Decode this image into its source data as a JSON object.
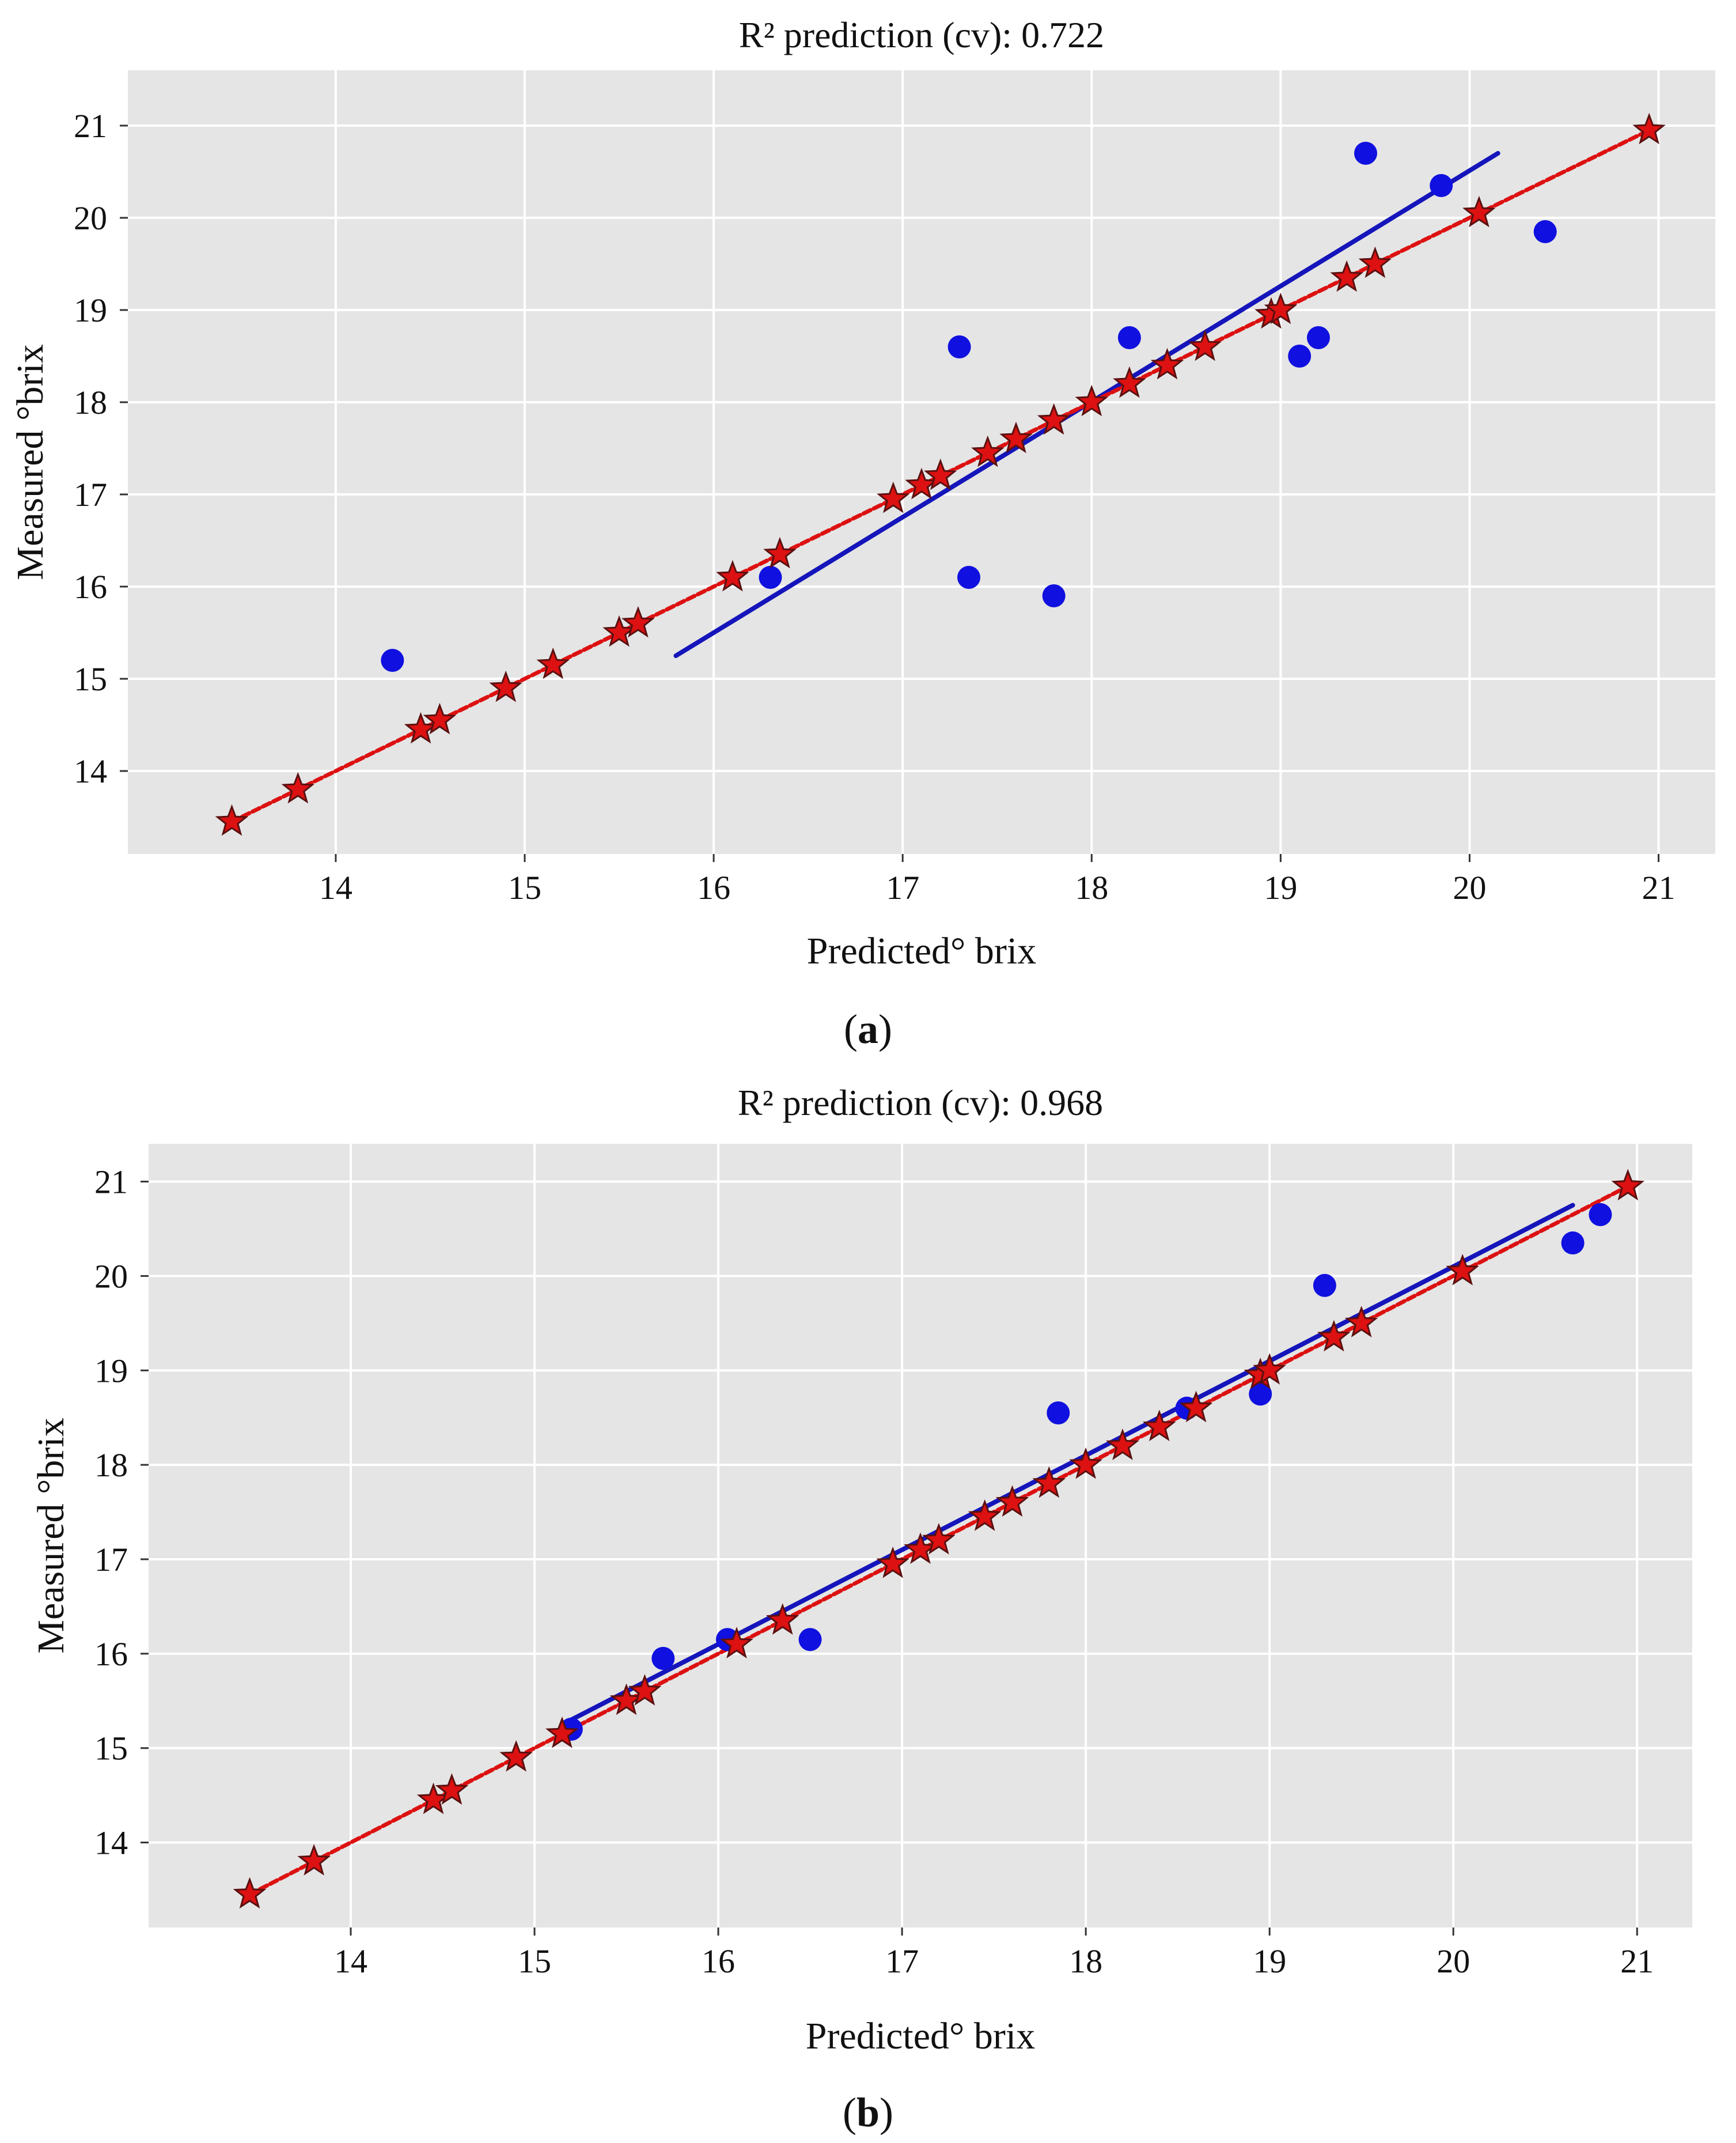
{
  "chart_data": [
    {
      "type": "scatter",
      "panel_label": "a",
      "title": "R² prediction (cv): 0.722",
      "xlabel": "Predicted°  brix",
      "ylabel": "Measured  °brix",
      "xlim": [
        12.9,
        21.3
      ],
      "ylim": [
        13.1,
        21.6
      ],
      "xticks": [
        14,
        15,
        16,
        17,
        18,
        19,
        20,
        21
      ],
      "yticks": [
        14,
        15,
        16,
        17,
        18,
        19,
        20,
        21
      ],
      "grid": true,
      "background": "#e5e5e5",
      "series": [
        {
          "name": "measured points",
          "marker": "circle",
          "color": "#1010e0",
          "x": [
            14.3,
            16.3,
            17.3,
            17.35,
            17.8,
            18.2,
            19.1,
            19.2,
            19.45,
            19.85,
            20.4
          ],
          "y": [
            15.2,
            16.1,
            18.6,
            16.1,
            15.9,
            18.7,
            18.5,
            18.7,
            20.7,
            20.35,
            19.85
          ]
        },
        {
          "name": "fitted line",
          "marker": "line",
          "color": "#1515bb",
          "x": [
            15.8,
            20.15
          ],
          "y": [
            15.25,
            20.7
          ]
        },
        {
          "name": "reference stars",
          "marker": "star",
          "color": "#dd1111",
          "x": [
            13.45,
            13.8,
            14.45,
            14.55,
            14.9,
            15.15,
            15.5,
            15.6,
            16.1,
            16.35,
            16.95,
            17.1,
            17.2,
            17.45,
            17.6,
            17.8,
            18.0,
            18.2,
            18.4,
            18.6,
            18.95,
            19.0,
            19.35,
            19.5,
            20.05,
            20.95
          ],
          "y": [
            13.45,
            13.8,
            14.45,
            14.55,
            14.9,
            15.15,
            15.5,
            15.6,
            16.1,
            16.35,
            16.95,
            17.1,
            17.2,
            17.45,
            17.6,
            17.8,
            18.0,
            18.2,
            18.4,
            18.6,
            18.95,
            19.0,
            19.35,
            19.5,
            20.05,
            20.95
          ]
        },
        {
          "name": "reference line",
          "marker": "line",
          "color": "#dd1111",
          "x": [
            13.45,
            20.95
          ],
          "y": [
            13.45,
            20.95
          ]
        }
      ]
    },
    {
      "type": "scatter",
      "panel_label": "b",
      "title": "R² prediction (cv): 0.968",
      "xlabel": "Predicted°  brix",
      "ylabel": "Measured  °brix",
      "xlim": [
        12.9,
        21.3
      ],
      "ylim": [
        13.1,
        21.4
      ],
      "xticks": [
        14,
        15,
        16,
        17,
        18,
        19,
        20,
        21
      ],
      "yticks": [
        14,
        15,
        16,
        17,
        18,
        19,
        20,
        21
      ],
      "grid": true,
      "background": "#e5e5e5",
      "series": [
        {
          "name": "measured points",
          "marker": "circle",
          "color": "#1010e0",
          "x": [
            15.2,
            15.7,
            16.05,
            16.5,
            17.85,
            18.55,
            18.95,
            19.3,
            20.65,
            20.8
          ],
          "y": [
            15.2,
            15.95,
            16.15,
            16.15,
            18.55,
            18.6,
            18.75,
            19.9,
            20.35,
            20.65
          ]
        },
        {
          "name": "fitted line",
          "marker": "line",
          "color": "#1515bb",
          "x": [
            15.15,
            20.65
          ],
          "y": [
            15.25,
            20.75
          ]
        },
        {
          "name": "reference stars",
          "marker": "star",
          "color": "#dd1111",
          "x": [
            13.45,
            13.8,
            14.45,
            14.55,
            14.9,
            15.15,
            15.5,
            15.6,
            16.1,
            16.35,
            16.95,
            17.1,
            17.2,
            17.45,
            17.6,
            17.8,
            18.0,
            18.2,
            18.4,
            18.6,
            18.95,
            19.0,
            19.35,
            19.5,
            20.05,
            20.95
          ],
          "y": [
            13.45,
            13.8,
            14.45,
            14.55,
            14.9,
            15.15,
            15.5,
            15.6,
            16.1,
            16.35,
            16.95,
            17.1,
            17.2,
            17.45,
            17.6,
            17.8,
            18.0,
            18.2,
            18.4,
            18.6,
            18.95,
            19.0,
            19.35,
            19.5,
            20.05,
            20.95
          ]
        },
        {
          "name": "reference line",
          "marker": "line",
          "color": "#dd1111",
          "x": [
            13.45,
            20.95
          ],
          "y": [
            13.45,
            20.95
          ]
        }
      ]
    }
  ]
}
